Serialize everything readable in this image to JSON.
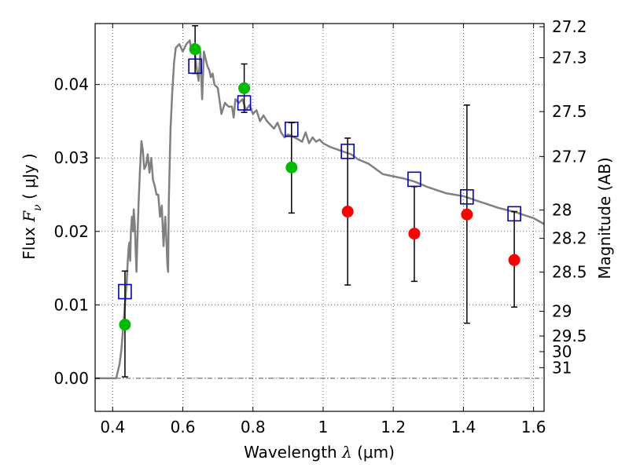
{
  "chart_data": {
    "type": "scatter",
    "xlabel_prefix": "Wavelength  ",
    "xlabel_symbol": "λ",
    "xlabel_suffix": " (μm)",
    "ylabel_prefix": "Flux  ",
    "ylabel_symbol": "F",
    "ylabel_subscript": "ν",
    "ylabel_suffix": "  ( μJy )",
    "y2label": "Magnitude (AB)",
    "xlim": [
      0.35,
      1.63
    ],
    "ylim": [
      -0.0045,
      0.0483
    ],
    "x_ticks": [
      0.4,
      0.6,
      0.8,
      1.0,
      1.2,
      1.4,
      1.6
    ],
    "x_tick_labels": [
      "0.4",
      "0.6",
      "0.8",
      "1",
      "1.2",
      "1.4",
      "1.6"
    ],
    "y_ticks": [
      0.0,
      0.01,
      0.02,
      0.03,
      0.04
    ],
    "y_tick_labels": [
      "0.00",
      "0.01",
      "0.02",
      "0.03",
      "0.04"
    ],
    "y2_ticks": [
      27.2,
      27.3,
      27.5,
      27.7,
      28,
      28.2,
      28.5,
      29,
      29.5,
      30,
      31
    ],
    "y2_tick_labels": [
      "27.2",
      "27.3",
      "27.5",
      "27.7",
      "28",
      "28.2",
      "28.5",
      "29",
      "29.5",
      "30",
      "31"
    ],
    "grid": true,
    "zero_line": true,
    "colors": {
      "model": "#808080",
      "detection": "#00bb00",
      "non_detection": "#ff0000",
      "synthetic": "#0000cc",
      "errorbar": "#000000",
      "grid": "#444444"
    },
    "observed": [
      {
        "x": 0.435,
        "y": 0.0073,
        "ylow": 0.0002,
        "yhigh": 0.0146,
        "status": "detection"
      },
      {
        "x": 0.635,
        "y": 0.0448,
        "ylow": 0.0415,
        "yhigh": 0.048,
        "status": "detection"
      },
      {
        "x": 0.775,
        "y": 0.0395,
        "ylow": 0.0362,
        "yhigh": 0.0428,
        "status": "detection"
      },
      {
        "x": 0.91,
        "y": 0.0287,
        "ylow": 0.0225,
        "yhigh": 0.0348,
        "status": "detection"
      },
      {
        "x": 1.07,
        "y": 0.0227,
        "ylow": 0.0127,
        "yhigh": 0.0327,
        "status": "non_detection"
      },
      {
        "x": 1.26,
        "y": 0.0197,
        "ylow": 0.0132,
        "yhigh": 0.0261,
        "status": "non_detection"
      },
      {
        "x": 1.41,
        "y": 0.0223,
        "ylow": 0.0075,
        "yhigh": 0.0372,
        "status": "non_detection"
      },
      {
        "x": 1.545,
        "y": 0.0161,
        "ylow": 0.0097,
        "yhigh": 0.0227,
        "status": "non_detection"
      }
    ],
    "synthetic_photometry": [
      {
        "x": 0.435,
        "y": 0.0118
      },
      {
        "x": 0.635,
        "y": 0.0425
      },
      {
        "x": 0.775,
        "y": 0.0375
      },
      {
        "x": 0.91,
        "y": 0.0339
      },
      {
        "x": 1.07,
        "y": 0.0309
      },
      {
        "x": 1.26,
        "y": 0.0271
      },
      {
        "x": 1.41,
        "y": 0.0247
      },
      {
        "x": 1.545,
        "y": 0.0224
      }
    ],
    "model_spectrum": [
      [
        0.35,
        0.0
      ],
      [
        0.41,
        0.0
      ],
      [
        0.42,
        0.002
      ],
      [
        0.425,
        0.004
      ],
      [
        0.43,
        0.007
      ],
      [
        0.435,
        0.01
      ],
      [
        0.44,
        0.013
      ],
      [
        0.443,
        0.016
      ],
      [
        0.446,
        0.018
      ],
      [
        0.448,
        0.0185
      ],
      [
        0.45,
        0.016
      ],
      [
        0.452,
        0.02
      ],
      [
        0.455,
        0.022
      ],
      [
        0.458,
        0.02
      ],
      [
        0.46,
        0.023
      ],
      [
        0.463,
        0.021
      ],
      [
        0.466,
        0.017
      ],
      [
        0.468,
        0.0145
      ],
      [
        0.47,
        0.018
      ],
      [
        0.474,
        0.024
      ],
      [
        0.478,
        0.0285
      ],
      [
        0.482,
        0.0323
      ],
      [
        0.486,
        0.031
      ],
      [
        0.49,
        0.0285
      ],
      [
        0.495,
        0.029
      ],
      [
        0.5,
        0.0305
      ],
      [
        0.505,
        0.028
      ],
      [
        0.51,
        0.03
      ],
      [
        0.515,
        0.027
      ],
      [
        0.52,
        0.0262
      ],
      [
        0.525,
        0.025
      ],
      [
        0.53,
        0.025
      ],
      [
        0.535,
        0.022
      ],
      [
        0.54,
        0.0235
      ],
      [
        0.545,
        0.018
      ],
      [
        0.55,
        0.022
      ],
      [
        0.553,
        0.019
      ],
      [
        0.556,
        0.0155
      ],
      [
        0.558,
        0.0145
      ],
      [
        0.56,
        0.024
      ],
      [
        0.565,
        0.034
      ],
      [
        0.57,
        0.039
      ],
      [
        0.575,
        0.043
      ],
      [
        0.58,
        0.045
      ],
      [
        0.59,
        0.0455
      ],
      [
        0.6,
        0.0445
      ],
      [
        0.61,
        0.0455
      ],
      [
        0.62,
        0.046
      ],
      [
        0.625,
        0.0445
      ],
      [
        0.63,
        0.0455
      ],
      [
        0.635,
        0.044
      ],
      [
        0.64,
        0.042
      ],
      [
        0.645,
        0.0405
      ],
      [
        0.65,
        0.0445
      ],
      [
        0.655,
        0.038
      ],
      [
        0.66,
        0.0445
      ],
      [
        0.665,
        0.0435
      ],
      [
        0.67,
        0.0425
      ],
      [
        0.675,
        0.042
      ],
      [
        0.68,
        0.041
      ],
      [
        0.685,
        0.0415
      ],
      [
        0.69,
        0.04
      ],
      [
        0.7,
        0.0395
      ],
      [
        0.71,
        0.036
      ],
      [
        0.72,
        0.0375
      ],
      [
        0.73,
        0.037
      ],
      [
        0.74,
        0.037
      ],
      [
        0.745,
        0.0355
      ],
      [
        0.75,
        0.038
      ],
      [
        0.76,
        0.0375
      ],
      [
        0.77,
        0.038
      ],
      [
        0.78,
        0.0365
      ],
      [
        0.79,
        0.0372
      ],
      [
        0.8,
        0.036
      ],
      [
        0.81,
        0.0365
      ],
      [
        0.82,
        0.035
      ],
      [
        0.83,
        0.0358
      ],
      [
        0.84,
        0.035
      ],
      [
        0.85,
        0.0345
      ],
      [
        0.86,
        0.034
      ],
      [
        0.87,
        0.0348
      ],
      [
        0.88,
        0.0335
      ],
      [
        0.89,
        0.0328
      ],
      [
        0.9,
        0.0332
      ],
      [
        0.91,
        0.033
      ],
      [
        0.93,
        0.0325
      ],
      [
        0.94,
        0.0322
      ],
      [
        0.95,
        0.0335
      ],
      [
        0.96,
        0.032
      ],
      [
        0.97,
        0.0328
      ],
      [
        0.98,
        0.0322
      ],
      [
        0.99,
        0.0325
      ],
      [
        1.0,
        0.032
      ],
      [
        1.02,
        0.0315
      ],
      [
        1.05,
        0.031
      ],
      [
        1.08,
        0.0305
      ],
      [
        1.1,
        0.0298
      ],
      [
        1.13,
        0.0292
      ],
      [
        1.15,
        0.0285
      ],
      [
        1.17,
        0.0278
      ],
      [
        1.2,
        0.0275
      ],
      [
        1.23,
        0.0272
      ],
      [
        1.26,
        0.0268
      ],
      [
        1.3,
        0.026
      ],
      [
        1.35,
        0.0252
      ],
      [
        1.4,
        0.0248
      ],
      [
        1.45,
        0.024
      ],
      [
        1.5,
        0.0232
      ],
      [
        1.55,
        0.0226
      ],
      [
        1.6,
        0.0218
      ],
      [
        1.63,
        0.021
      ]
    ]
  }
}
